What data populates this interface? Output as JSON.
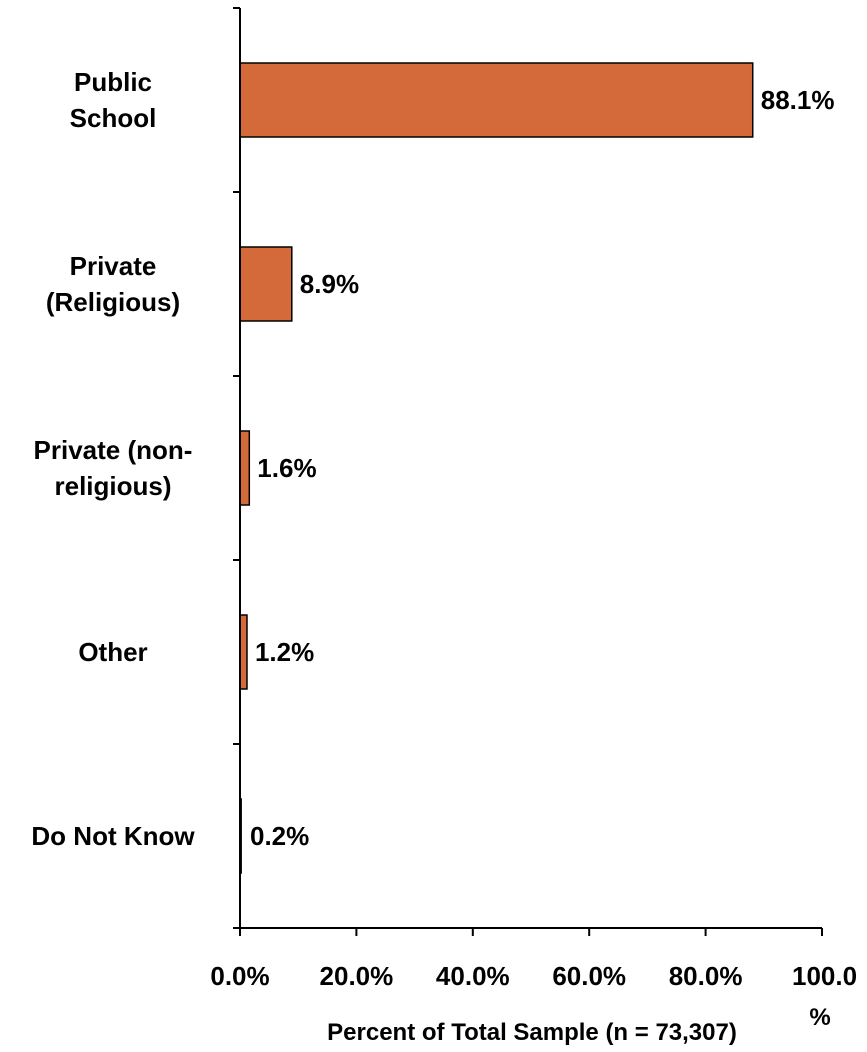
{
  "chart_data": {
    "type": "bar",
    "orientation": "horizontal",
    "categories": [
      [
        "Public",
        "School"
      ],
      [
        "Private",
        "(Religious)"
      ],
      [
        "Private (non-",
        "religious)"
      ],
      [
        "Other"
      ],
      [
        "Do Not Know"
      ]
    ],
    "values": [
      88.1,
      8.9,
      1.6,
      1.2,
      0.2
    ],
    "data_labels": [
      "88.1%",
      "8.9%",
      "1.6%",
      "1.2%",
      "0.2%"
    ],
    "xlim": [
      0,
      100
    ],
    "x_ticks": [
      0,
      20,
      40,
      60,
      80,
      100
    ],
    "x_tick_labels": [
      "0.0%",
      "20.0%",
      "40.0%",
      "60.0%",
      "80.0%",
      "100.0"
    ],
    "xlabel": "Percent of Total Sample (n = 73,307)",
    "xlabel_suffix": "%",
    "bar_color": "#D4693A",
    "bar_edge_color": "#000000",
    "grid": false,
    "legend": "none"
  }
}
